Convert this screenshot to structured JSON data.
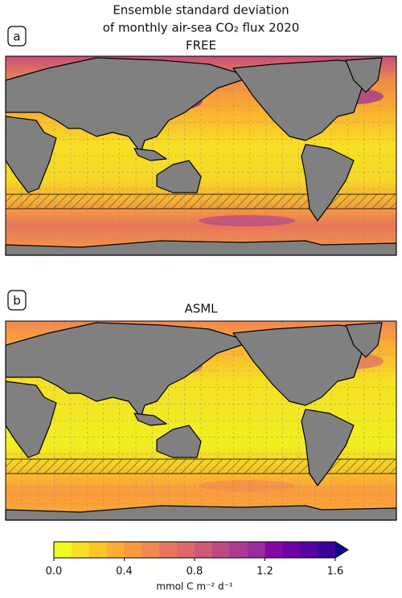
{
  "title": [
    "Ensemble standard deviation",
    "of monthly air-sea CO₂ flux 2020"
  ],
  "panels": [
    {
      "label": "a",
      "title": "FREE"
    },
    {
      "label": "b",
      "title": "ASML"
    }
  ],
  "colorbar": {
    "lim": [
      0,
      1.6
    ],
    "ticks": [
      {
        "value": 0,
        "label": "0.0"
      },
      {
        "value": 0.4,
        "label": "0.4"
      },
      {
        "value": 0.8,
        "label": "0.8"
      },
      {
        "value": 1.2,
        "label": "1.2"
      },
      {
        "value": 1.6,
        "label": "1.6"
      }
    ],
    "label": "mmol C m⁻² d⁻¹",
    "colors": [
      "#f0f921",
      "#f8df25",
      "#fcc627",
      "#fdae32",
      "#f99a3e",
      "#f3874f",
      "#e8765c",
      "#dc6869",
      "#cd5a76",
      "#bd4b83",
      "#ab3a92",
      "#9a2b9e",
      "#8606a6",
      "#6f00a8",
      "#5601a4",
      "#3a049a"
    ],
    "extend_color": "#0d0887"
  }
}
